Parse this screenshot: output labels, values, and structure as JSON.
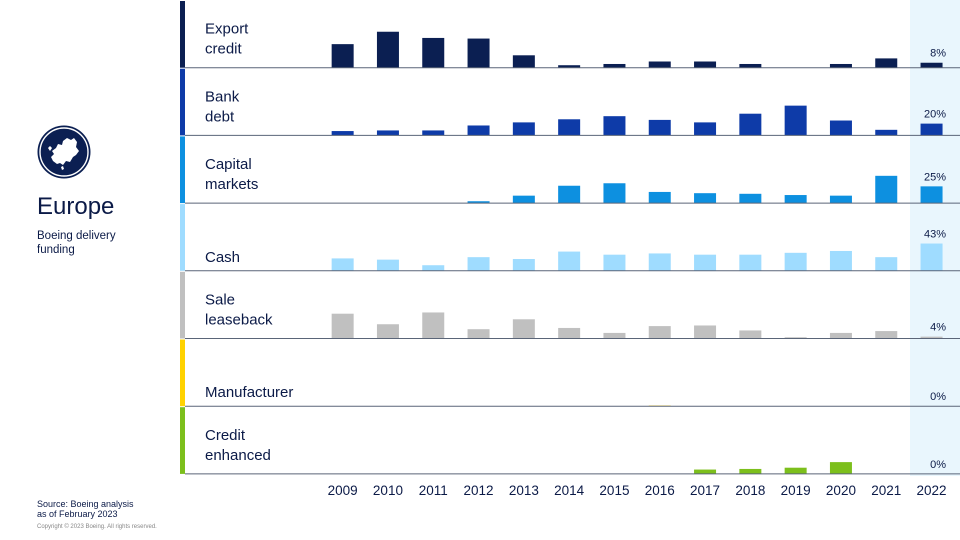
{
  "region": {
    "title": "Europe",
    "subtitle_lines": [
      "Boeing delivery",
      "funding"
    ]
  },
  "source_lines": [
    "Source: Boeing analysis",
    "as of February 2023"
  ],
  "copyright": "Copyright © 2023 Boeing. All rights reserved.",
  "icons": {
    "region_icon": "europe-globe-icon"
  },
  "chart_data": {
    "type": "bar",
    "layout": "small-multiples",
    "x": [
      "2009",
      "2010",
      "2011",
      "2012",
      "2013",
      "2014",
      "2015",
      "2016",
      "2017",
      "2018",
      "2019",
      "2020",
      "2021",
      "2022"
    ],
    "highlight_category": "2022",
    "value_unit": "relative bar height (0-1, unlabeled y-axis)",
    "series": [
      {
        "name": "Export credit",
        "label_lines": [
          "Export",
          "credit"
        ],
        "color": "#0b1f52",
        "pct_2022": "8%",
        "values": [
          0.38,
          0.58,
          0.48,
          0.47,
          0.2,
          0.04,
          0.06,
          0.1,
          0.1,
          0.06,
          0.0,
          0.06,
          0.15,
          0.08
        ]
      },
      {
        "name": "Bank debt",
        "label_lines": [
          "Bank",
          "debt"
        ],
        "color": "#0e3ba8",
        "pct_2022": "20%",
        "values": [
          0.07,
          0.08,
          0.08,
          0.16,
          0.21,
          0.26,
          0.31,
          0.25,
          0.21,
          0.35,
          0.48,
          0.24,
          0.09,
          0.19
        ]
      },
      {
        "name": "Capital markets",
        "label_lines": [
          "Capital",
          "markets"
        ],
        "color": "#0d90e0",
        "pct_2022": "25%",
        "values": [
          0.0,
          0.0,
          0.0,
          0.03,
          0.12,
          0.28,
          0.32,
          0.18,
          0.16,
          0.15,
          0.13,
          0.12,
          0.44,
          0.27
        ]
      },
      {
        "name": "Cash",
        "label_lines": [
          "Cash"
        ],
        "color": "#9fdcff",
        "pct_2022": "43%",
        "values": [
          0.2,
          0.18,
          0.09,
          0.22,
          0.19,
          0.31,
          0.26,
          0.28,
          0.26,
          0.26,
          0.29,
          0.32,
          0.22,
          0.44
        ]
      },
      {
        "name": "Sale leaseback",
        "label_lines": [
          "Sale",
          "leaseback"
        ],
        "color": "#c0c0c0",
        "pct_2022": "4%",
        "values": [
          0.4,
          0.23,
          0.42,
          0.15,
          0.31,
          0.17,
          0.09,
          0.2,
          0.21,
          0.13,
          0.02,
          0.09,
          0.12,
          0.03
        ]
      },
      {
        "name": "Manufacturer",
        "label_lines": [
          "Manufacturer"
        ],
        "color": "#ffd200",
        "pct_2022": "0%",
        "values": [
          0,
          0,
          0,
          0,
          0,
          0,
          0,
          0.01,
          0,
          0,
          0,
          0,
          0,
          0
        ]
      },
      {
        "name": "Credit enhanced",
        "label_lines": [
          "Credit",
          "enhanced"
        ],
        "color": "#7cbf1c",
        "pct_2022": "0%",
        "values": [
          0,
          0,
          0,
          0,
          0,
          0,
          0,
          0,
          0.07,
          0.08,
          0.1,
          0.19,
          0,
          0
        ]
      }
    ]
  }
}
